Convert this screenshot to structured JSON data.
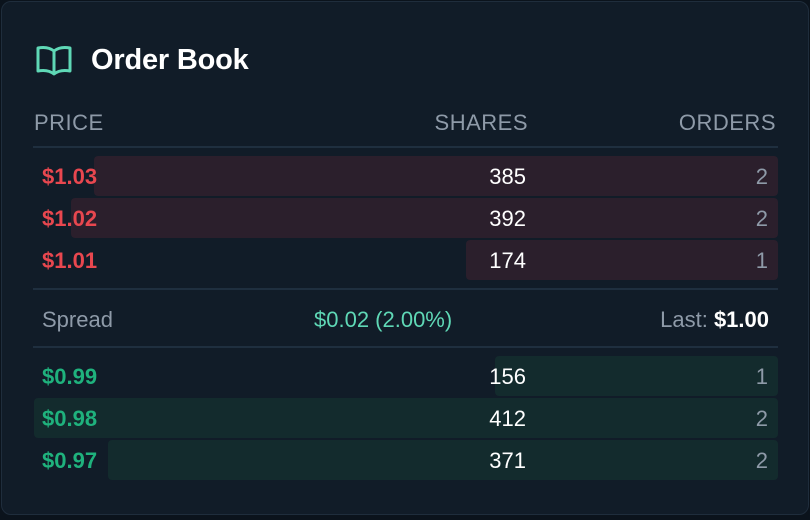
{
  "title": "Order Book",
  "columns": {
    "price": "PRICE",
    "shares": "SHARES",
    "orders": "ORDERS"
  },
  "asks": [
    {
      "price": "$1.03",
      "shares": "385",
      "orders": "2",
      "depth": 0.92
    },
    {
      "price": "$1.02",
      "shares": "392",
      "orders": "2",
      "depth": 0.95
    },
    {
      "price": "$1.01",
      "shares": "174",
      "orders": "1",
      "depth": 0.42
    }
  ],
  "spread": {
    "label": "Spread",
    "value": "$0.02 (2.00%)",
    "last_label": "Last:",
    "last_value": "$1.00"
  },
  "bids": [
    {
      "price": "$0.99",
      "shares": "156",
      "orders": "1",
      "depth": 0.38
    },
    {
      "price": "$0.98",
      "shares": "412",
      "orders": "2",
      "depth": 1.0
    },
    {
      "price": "$0.97",
      "shares": "371",
      "orders": "2",
      "depth": 0.9
    }
  ],
  "colors": {
    "ask": "#e8474f",
    "bid": "#1fb27d",
    "spread": "#5fd8b6",
    "icon": "#5fd8b6"
  },
  "icons": {
    "header": "book-open-icon"
  }
}
